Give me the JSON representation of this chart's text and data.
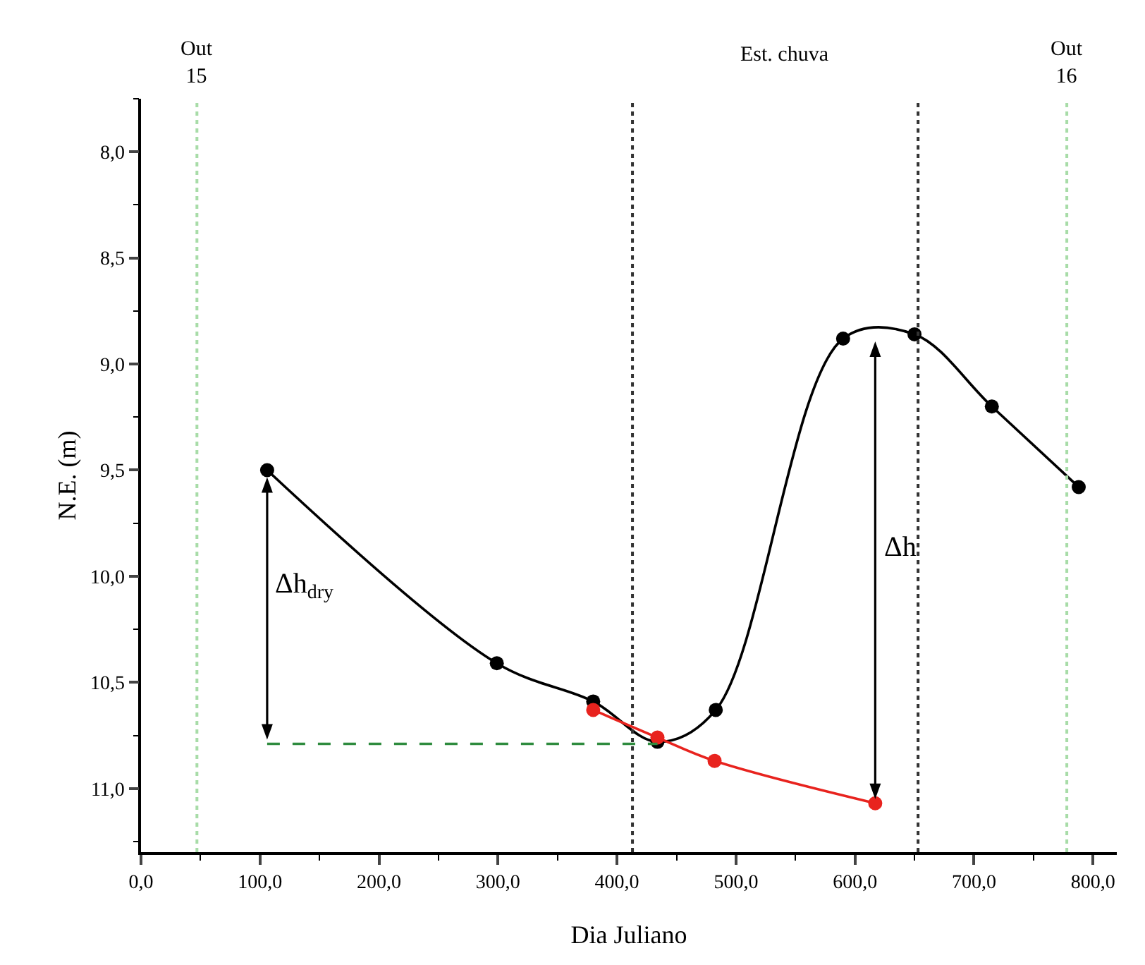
{
  "chart_data": {
    "type": "line",
    "xlabel": "Dia Juliano",
    "ylabel": "N.E. (m)",
    "xlim": [
      0,
      820
    ],
    "ylim": [
      11.3,
      7.75
    ],
    "xticks": [
      {
        "value": 0,
        "label": "0,0"
      },
      {
        "value": 100,
        "label": "100,0"
      },
      {
        "value": 200,
        "label": "200,0"
      },
      {
        "value": 300,
        "label": "300,0"
      },
      {
        "value": 400,
        "label": "400,0"
      },
      {
        "value": 500,
        "label": "500,0"
      },
      {
        "value": 600,
        "label": "600,0"
      },
      {
        "value": 700,
        "label": "700,0"
      },
      {
        "value": 800,
        "label": "800,0"
      }
    ],
    "yticks": [
      {
        "value": 8,
        "label": "8,0"
      },
      {
        "value": 8.5,
        "label": "8,5"
      },
      {
        "value": 9,
        "label": "9,0"
      },
      {
        "value": 9.5,
        "label": "9,5"
      },
      {
        "value": 10,
        "label": "10,0"
      },
      {
        "value": 10.5,
        "label": "10,5"
      },
      {
        "value": 11,
        "label": "11,0"
      }
    ],
    "grid": false,
    "marker": "circle",
    "line_style": "solid",
    "series": [
      {
        "color": "#000000",
        "x": [
          106,
          299,
          380,
          434,
          483,
          590,
          650,
          715,
          788
        ],
        "values": [
          9.5,
          10.41,
          10.59,
          10.78,
          10.63,
          8.88,
          8.86,
          9.2,
          9.58
        ]
      },
      {
        "color": "#e8231e",
        "x": [
          380,
          434,
          482,
          617
        ],
        "values": [
          10.63,
          10.76,
          10.87,
          11.07
        ]
      },
      {
        "color": "#2e8b3e",
        "x": [
          106,
          434
        ],
        "values": [
          10.79,
          10.79
        ],
        "marker": "none",
        "line_style": "dashed"
      }
    ],
    "ref_lines": [
      {
        "axis": "x",
        "value": 47,
        "label": "Out\n15",
        "color": "#a8dca8",
        "line_style": "dotted"
      },
      {
        "axis": "x",
        "value": 413,
        "color": "#333333",
        "line_style": "dotted"
      },
      {
        "axis": "x",
        "value": 653,
        "color": "#333333",
        "line_style": "dotted"
      },
      {
        "axis": "x",
        "value": 778,
        "label": "Out\n16",
        "color": "#a8dca8",
        "line_style": "dotted"
      }
    ],
    "annotations": [
      "Est. chuva",
      "Δh$_{dry}$",
      "Δh"
    ]
  }
}
